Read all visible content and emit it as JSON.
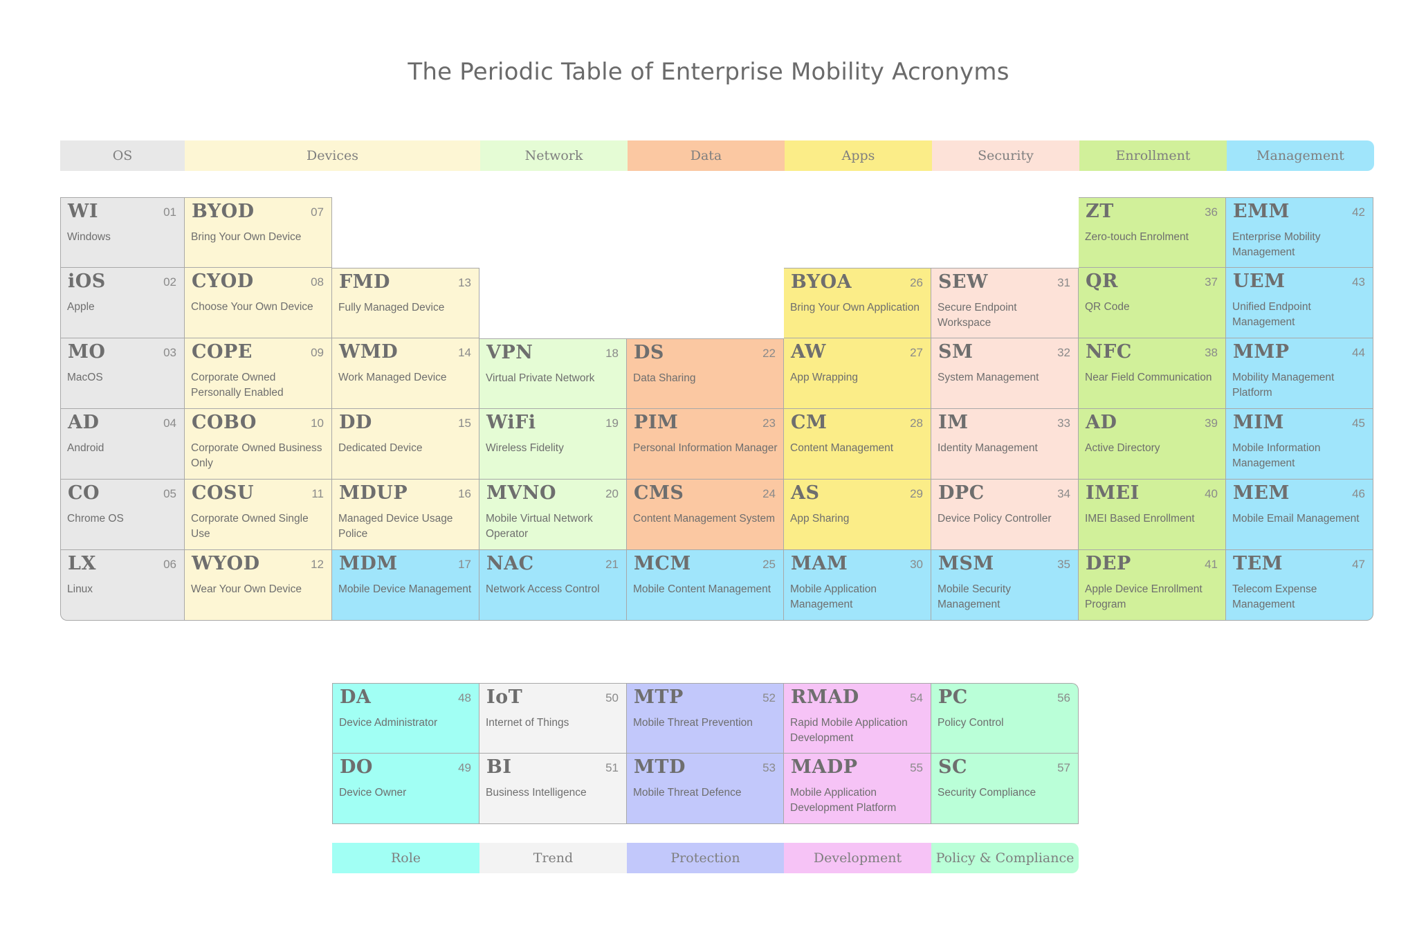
{
  "title": "The Periodic Table of Enterprise Mobility Acronyms",
  "colors": {
    "os": "#e8e8e8",
    "devices": "#fdf6d4",
    "network": "#e5fcd5",
    "data": "#fbc8a2",
    "apps": "#fbed88",
    "security": "#fde2d8",
    "enrollment": "#d1f09a",
    "management": "#a0e5fb",
    "role": "#a1fff4",
    "trend": "#f3f3f3",
    "protection": "#c2c8fb",
    "development": "#f6c3f6",
    "policy": "#baffd8"
  },
  "top_legend": [
    {
      "label": "OS",
      "color": "os"
    },
    {
      "label": "Devices",
      "color": "devices"
    },
    {
      "label": "Network",
      "color": "network"
    },
    {
      "label": "Data",
      "color": "data"
    },
    {
      "label": "Apps",
      "color": "apps"
    },
    {
      "label": "Security",
      "color": "security"
    },
    {
      "label": "Enrollment",
      "color": "enrollment"
    },
    {
      "label": "Management",
      "color": "management"
    }
  ],
  "bottom_legend": [
    {
      "label": "Role",
      "color": "role"
    },
    {
      "label": "Trend",
      "color": "trend"
    },
    {
      "label": "Protection",
      "color": "protection"
    },
    {
      "label": "Development",
      "color": "development"
    },
    {
      "label": "Policy & Compliance",
      "color": "policy"
    }
  ],
  "main_elements": [
    {
      "sym": "WI",
      "num": "01",
      "name": "Windows",
      "color": "os"
    },
    {
      "sym": "iOS",
      "num": "02",
      "name": "Apple",
      "color": "os"
    },
    {
      "sym": "MO",
      "num": "03",
      "name": "MacOS",
      "color": "os"
    },
    {
      "sym": "AD",
      "num": "04",
      "name": "Android",
      "color": "os"
    },
    {
      "sym": "CO",
      "num": "05",
      "name": "Chrome OS",
      "color": "os"
    },
    {
      "sym": "LX",
      "num": "06",
      "name": "Linux",
      "color": "os"
    },
    {
      "sym": "BYOD",
      "num": "07",
      "name": "Bring Your Own Device",
      "color": "devices"
    },
    {
      "sym": "CYOD",
      "num": "08",
      "name": "Choose Your Own Device",
      "color": "devices"
    },
    {
      "sym": "COPE",
      "num": "09",
      "name": "Corporate Owned Personally Enabled",
      "color": "devices"
    },
    {
      "sym": "COBO",
      "num": "10",
      "name": "Corporate Owned Business Only",
      "color": "devices"
    },
    {
      "sym": "COSU",
      "num": "11",
      "name": "Corporate Owned Single Use",
      "color": "devices"
    },
    {
      "sym": "WYOD",
      "num": "12",
      "name": "Wear Your Own Device",
      "color": "devices"
    },
    {
      "sym": "FMD",
      "num": "13",
      "name": "Fully Managed Device",
      "color": "devices"
    },
    {
      "sym": "WMD",
      "num": "14",
      "name": "Work Managed Device",
      "color": "devices"
    },
    {
      "sym": "DD",
      "num": "15",
      "name": "Dedicated Device",
      "color": "devices"
    },
    {
      "sym": "MDUP",
      "num": "16",
      "name": "Managed Device Usage Police",
      "color": "devices"
    },
    {
      "sym": "MDM",
      "num": "17",
      "name": "Mobile Device Management",
      "color": "management"
    },
    {
      "sym": "VPN",
      "num": "18",
      "name": "Virtual Private Network",
      "color": "network"
    },
    {
      "sym": "WiFi",
      "num": "19",
      "name": "Wireless Fidelity",
      "color": "network"
    },
    {
      "sym": "MVNO",
      "num": "20",
      "name": "Mobile Virtual Network Operator",
      "color": "network"
    },
    {
      "sym": "NAC",
      "num": "21",
      "name": "Network Access Control",
      "color": "management"
    },
    {
      "sym": "DS",
      "num": "22",
      "name": "Data Sharing",
      "color": "data"
    },
    {
      "sym": "PIM",
      "num": "23",
      "name": "Personal Information Manager",
      "color": "data"
    },
    {
      "sym": "CMS",
      "num": "24",
      "name": "Content Management System",
      "color": "data"
    },
    {
      "sym": "MCM",
      "num": "25",
      "name": "Mobile Content Management",
      "color": "management"
    },
    {
      "sym": "BYOA",
      "num": "26",
      "name": "Bring Your Own Application",
      "color": "apps"
    },
    {
      "sym": "AW",
      "num": "27",
      "name": "App Wrapping",
      "color": "apps"
    },
    {
      "sym": "CM",
      "num": "28",
      "name": "Content Management",
      "color": "apps"
    },
    {
      "sym": "AS",
      "num": "29",
      "name": "App Sharing",
      "color": "apps"
    },
    {
      "sym": "MAM",
      "num": "30",
      "name": "Mobile Application Management",
      "color": "management"
    },
    {
      "sym": "SEW",
      "num": "31",
      "name": "Secure Endpoint Workspace",
      "color": "security"
    },
    {
      "sym": "SM",
      "num": "32",
      "name": "System Management",
      "color": "security"
    },
    {
      "sym": "IM",
      "num": "33",
      "name": "Identity Management",
      "color": "security"
    },
    {
      "sym": "DPC",
      "num": "34",
      "name": "Device Policy Controller",
      "color": "security"
    },
    {
      "sym": "MSM",
      "num": "35",
      "name": "Mobile Security Management",
      "color": "management"
    },
    {
      "sym": "ZT",
      "num": "36",
      "name": "Zero-touch Enrolment",
      "color": "enrollment"
    },
    {
      "sym": "QR",
      "num": "37",
      "name": "QR Code",
      "color": "enrollment"
    },
    {
      "sym": "NFC",
      "num": "38",
      "name": "Near Field Communication",
      "color": "enrollment"
    },
    {
      "sym": "AD",
      "num": "39",
      "name": "Active Directory",
      "color": "enrollment"
    },
    {
      "sym": "IMEI",
      "num": "40",
      "name": "IMEI Based Enrollment",
      "color": "enrollment"
    },
    {
      "sym": "DEP",
      "num": "41",
      "name": "Apple Device Enrollment Program",
      "color": "enrollment"
    },
    {
      "sym": "EMM",
      "num": "42",
      "name": "Enterprise Mobility Management",
      "color": "management"
    },
    {
      "sym": "UEM",
      "num": "43",
      "name": "Unified Endpoint Management",
      "color": "management"
    },
    {
      "sym": "MMP",
      "num": "44",
      "name": "Mobility Management Platform",
      "color": "management"
    },
    {
      "sym": "MIM",
      "num": "45",
      "name": "Mobile Information Management",
      "color": "management"
    },
    {
      "sym": "MEM",
      "num": "46",
      "name": "Mobile Email Management",
      "color": "management"
    },
    {
      "sym": "TEM",
      "num": "47",
      "name": "Telecom Expense Management",
      "color": "management"
    }
  ],
  "extra_elements": [
    {
      "sym": "DA",
      "num": "48",
      "name": "Device Administrator",
      "color": "role"
    },
    {
      "sym": "DO",
      "num": "49",
      "name": "Device Owner",
      "color": "role"
    },
    {
      "sym": "IoT",
      "num": "50",
      "name": "Internet of Things",
      "color": "trend"
    },
    {
      "sym": "BI",
      "num": "51",
      "name": "Business Intelligence",
      "color": "trend"
    },
    {
      "sym": "MTP",
      "num": "52",
      "name": "Mobile Threat Prevention",
      "color": "protection"
    },
    {
      "sym": "MTD",
      "num": "53",
      "name": "Mobile Threat Defence",
      "color": "protection"
    },
    {
      "sym": "RMAD",
      "num": "54",
      "name": "Rapid Mobile Application Development",
      "color": "development"
    },
    {
      "sym": "MADP",
      "num": "55",
      "name": "Mobile Application Development Platform",
      "color": "development"
    },
    {
      "sym": "PC",
      "num": "56",
      "name": "Policy Control",
      "color": "policy"
    },
    {
      "sym": "SC",
      "num": "57",
      "name": "Security Compliance",
      "color": "policy"
    }
  ]
}
